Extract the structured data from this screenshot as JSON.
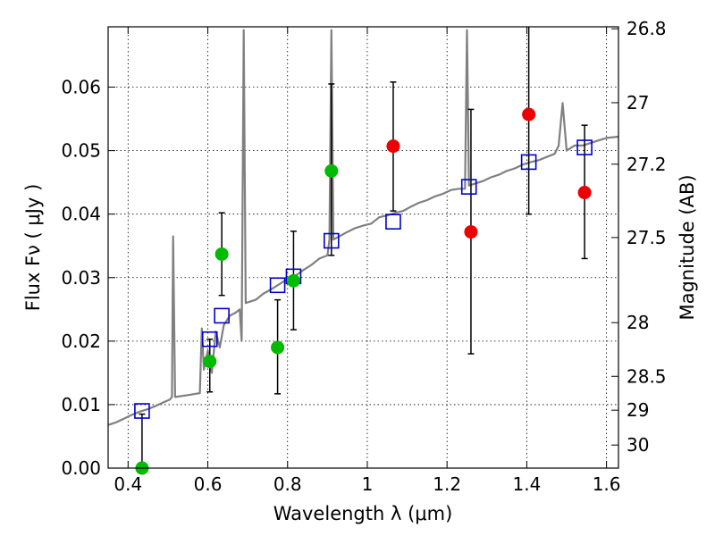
{
  "chart_data": {
    "type": "scatter",
    "title": "",
    "xlabel": "Wavelength  λ (μm)",
    "ylabel": "Flux  Fν  ( μJy )",
    "ylabel_right": "Magnitude (AB)",
    "xlim": [
      0.35,
      1.63
    ],
    "ylim": [
      0.0,
      0.0695
    ],
    "grid": true,
    "x_ticks": [
      {
        "value": 0.4,
        "label": "0.4"
      },
      {
        "value": 0.6,
        "label": "0.6"
      },
      {
        "value": 0.8,
        "label": "0.8"
      },
      {
        "value": 1.0,
        "label": "1"
      },
      {
        "value": 1.2,
        "label": "1.2"
      },
      {
        "value": 1.4,
        "label": "1.4"
      },
      {
        "value": 1.6,
        "label": "1.6"
      }
    ],
    "y_ticks": [
      {
        "value": 0.0,
        "label": "0.00"
      },
      {
        "value": 0.01,
        "label": "0.01"
      },
      {
        "value": 0.02,
        "label": "0.02"
      },
      {
        "value": 0.03,
        "label": "0.03"
      },
      {
        "value": 0.04,
        "label": "0.04"
      },
      {
        "value": 0.05,
        "label": "0.05"
      },
      {
        "value": 0.06,
        "label": "0.06"
      }
    ],
    "mag_ticks": [
      {
        "mag": 26.8,
        "label": "26.8"
      },
      {
        "mag": 27.0,
        "label": "27"
      },
      {
        "mag": 27.2,
        "label": "27.2"
      },
      {
        "mag": 27.5,
        "label": "27.5"
      },
      {
        "mag": 28.0,
        "label": "28"
      },
      {
        "mag": 28.5,
        "label": "28.5"
      },
      {
        "mag": 29.0,
        "label": "29"
      },
      {
        "mag": 30.0,
        "label": "30"
      }
    ],
    "series": [
      {
        "role": "model-spectrum",
        "style": "line",
        "color": "#808080",
        "points": [
          [
            0.35,
            0.0068
          ],
          [
            0.37,
            0.0072
          ],
          [
            0.39,
            0.0078
          ],
          [
            0.41,
            0.0084
          ],
          [
            0.43,
            0.0089
          ],
          [
            0.45,
            0.0093
          ],
          [
            0.47,
            0.0098
          ],
          [
            0.49,
            0.0104
          ],
          [
            0.505,
            0.0108
          ],
          [
            0.51,
            0.0112
          ],
          [
            0.513,
            0.0365
          ],
          [
            0.518,
            0.0112
          ],
          [
            0.55,
            0.0115
          ],
          [
            0.58,
            0.0118
          ],
          [
            0.585,
            0.022
          ],
          [
            0.59,
            0.0155
          ],
          [
            0.6,
            0.0185
          ],
          [
            0.61,
            0.015
          ],
          [
            0.62,
            0.0215
          ],
          [
            0.63,
            0.019
          ],
          [
            0.64,
            0.0225
          ],
          [
            0.655,
            0.024
          ],
          [
            0.67,
            0.0245
          ],
          [
            0.68,
            0.025
          ],
          [
            0.685,
            0.02
          ],
          [
            0.69,
            0.069
          ],
          [
            0.695,
            0.026
          ],
          [
            0.72,
            0.0265
          ],
          [
            0.74,
            0.0275
          ],
          [
            0.76,
            0.0282
          ],
          [
            0.78,
            0.029
          ],
          [
            0.8,
            0.0298
          ],
          [
            0.82,
            0.0303
          ],
          [
            0.84,
            0.0312
          ],
          [
            0.86,
            0.032
          ],
          [
            0.88,
            0.033
          ],
          [
            0.9,
            0.0335
          ],
          [
            0.905,
            0.036
          ],
          [
            0.91,
            0.069
          ],
          [
            0.915,
            0.036
          ],
          [
            0.93,
            0.0365
          ],
          [
            0.95,
            0.0372
          ],
          [
            0.97,
            0.0378
          ],
          [
            0.99,
            0.0382
          ],
          [
            1.01,
            0.0385
          ],
          [
            1.03,
            0.0395
          ],
          [
            1.05,
            0.0398
          ],
          [
            1.07,
            0.0402
          ],
          [
            1.09,
            0.0405
          ],
          [
            1.11,
            0.0412
          ],
          [
            1.13,
            0.0418
          ],
          [
            1.15,
            0.0422
          ],
          [
            1.17,
            0.0428
          ],
          [
            1.19,
            0.0432
          ],
          [
            1.21,
            0.0438
          ],
          [
            1.23,
            0.044
          ],
          [
            1.245,
            0.044
          ],
          [
            1.25,
            0.069
          ],
          [
            1.255,
            0.0445
          ],
          [
            1.27,
            0.0448
          ],
          [
            1.29,
            0.0452
          ],
          [
            1.31,
            0.0458
          ],
          [
            1.33,
            0.0462
          ],
          [
            1.35,
            0.0468
          ],
          [
            1.37,
            0.0472
          ],
          [
            1.39,
            0.0478
          ],
          [
            1.41,
            0.0482
          ],
          [
            1.43,
            0.0485
          ],
          [
            1.45,
            0.049
          ],
          [
            1.47,
            0.0495
          ],
          [
            1.48,
            0.0508
          ],
          [
            1.49,
            0.0575
          ],
          [
            1.5,
            0.05
          ],
          [
            1.52,
            0.0508
          ],
          [
            1.54,
            0.0508
          ],
          [
            1.56,
            0.0512
          ],
          [
            1.58,
            0.0516
          ],
          [
            1.6,
            0.052
          ],
          [
            1.63,
            0.0522
          ]
        ]
      },
      {
        "role": "model-photometry",
        "style": "open-square",
        "color": "#0000cc",
        "x": [
          0.435,
          0.605,
          0.635,
          0.775,
          0.815,
          0.91,
          1.065,
          1.255,
          1.405,
          1.545
        ],
        "y": [
          0.009,
          0.0203,
          0.024,
          0.0288,
          0.0302,
          0.0358,
          0.0388,
          0.0443,
          0.0482,
          0.0505
        ]
      },
      {
        "role": "observed-optical",
        "style": "filled-circle",
        "color": "#00bb00",
        "x": [
          0.435,
          0.605,
          0.635,
          0.775,
          0.815,
          0.91
        ],
        "y": [
          0.0,
          0.0168,
          0.0337,
          0.019,
          0.0295,
          0.0468
        ],
        "err_low": [
          0.0,
          0.012,
          0.0272,
          0.0117,
          0.0218,
          0.0335
        ],
        "err_high": [
          0.0085,
          0.0203,
          0.0402,
          0.0265,
          0.0373,
          0.0605
        ]
      },
      {
        "role": "observed-nir",
        "style": "filled-circle",
        "color": "#ee0000",
        "x": [
          1.065,
          1.26,
          1.405,
          1.545
        ],
        "y": [
          0.0507,
          0.0372,
          0.0557,
          0.0434
        ],
        "err_low": [
          0.0405,
          0.018,
          0.04,
          0.033
        ],
        "err_high": [
          0.0608,
          0.0565,
          0.0695,
          0.054
        ]
      }
    ]
  }
}
